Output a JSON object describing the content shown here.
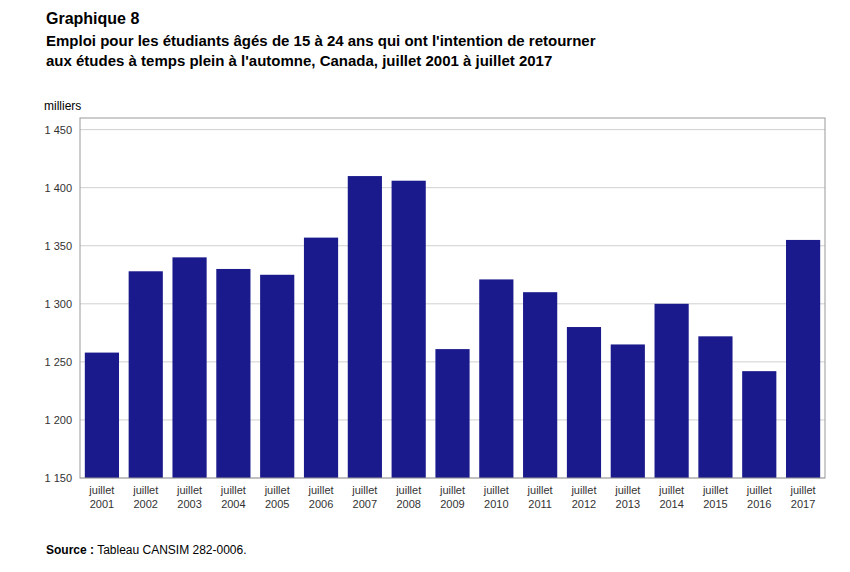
{
  "chart_data": {
    "type": "bar",
    "title": "Graphique 8",
    "subtitle": [
      "Emploi pour les étudiants âgés de 15 à 24 ans qui ont l'intention de retourner",
      "aux études à temps plein à l'automne, Canada, juillet 2001 à juillet 2017"
    ],
    "ylabel": "milliers",
    "annotations": [
      "Source :",
      "Tableau CANSIM 282-0006."
    ],
    "categories": [
      "juillet\n2001",
      "juillet\n2002",
      "juillet\n2003",
      "juillet\n2004",
      "juillet\n2005",
      "juillet\n2006",
      "juillet\n2007",
      "juillet\n2008",
      "juillet\n2009",
      "juillet\n2010",
      "juillet\n2011",
      "juillet\n2012",
      "juillet\n2013",
      "juillet\n2014",
      "juillet\n2015",
      "juillet\n2016",
      "juillet\n2017"
    ],
    "values": [
      1258,
      1328,
      1340,
      1330,
      1325,
      1357,
      1410,
      1406,
      1261,
      1321,
      1310,
      1280,
      1265,
      1300,
      1272,
      1242,
      1355
    ],
    "color": "#1a1a8c",
    "ylim": [
      1150,
      1460
    ],
    "yticks": [
      {
        "value": 1150,
        "label": "1 150"
      },
      {
        "value": 1200,
        "label": "1 200"
      },
      {
        "value": 1250,
        "label": "1 250"
      },
      {
        "value": 1300,
        "label": "1 300"
      },
      {
        "value": 1350,
        "label": "1 350"
      },
      {
        "value": 1400,
        "label": "1 400"
      },
      {
        "value": 1450,
        "label": "1 450"
      }
    ],
    "grid": true
  }
}
